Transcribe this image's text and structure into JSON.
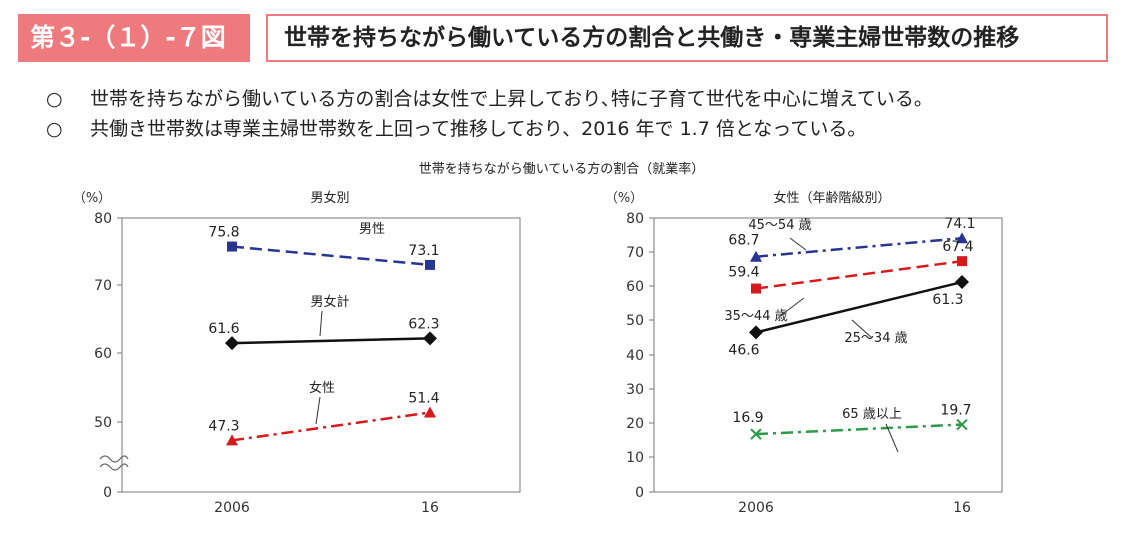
{
  "header": {
    "label": "第３-（１）-７図",
    "title": "世帯を持ちながら働いている方の割合と共働き・専業主婦世帯数の推移"
  },
  "bullets": [
    {
      "mark": "○",
      "text": "世帯を持ちながら働いている方の割合は女性で上昇しており､特に子育て世代を中心に増えている。"
    },
    {
      "mark": "○",
      "text": "共働き世帯数は専業主婦世帯数を上回って推移しており、2016 年で 1.7 倍となっている。"
    }
  ],
  "chart_heading": "世帯を持ちながら働いている方の割合（就業率）",
  "chart_data": [
    {
      "type": "line",
      "title": "男女別",
      "ylabel": "（%）",
      "categories": [
        "2006",
        "16"
      ],
      "ylim": [
        40,
        80
      ],
      "yticks": [
        "80",
        "70",
        "60",
        "50",
        "0"
      ],
      "axis_break": true,
      "series": [
        {
          "name": "男性",
          "values": [
            75.8,
            73.1
          ],
          "labels": [
            "75.8",
            "73.1"
          ],
          "color": "#283593",
          "dash": "dash",
          "marker": "square"
        },
        {
          "name": "男女計",
          "values": [
            61.6,
            62.3
          ],
          "labels": [
            "61.6",
            "62.3"
          ],
          "color": "#111111",
          "dash": "solid",
          "marker": "diamond"
        },
        {
          "name": "女性",
          "values": [
            47.3,
            51.4
          ],
          "labels": [
            "47.3",
            "51.4"
          ],
          "color": "#d8191c",
          "dash": "dashdot",
          "marker": "triangle"
        }
      ]
    },
    {
      "type": "line",
      "title": "女性（年齢階級別）",
      "ylabel": "（%）",
      "categories": [
        "2006",
        "16"
      ],
      "ylim": [
        0,
        80
      ],
      "yticks": [
        "80",
        "70",
        "60",
        "50",
        "40",
        "30",
        "20",
        "10",
        "0"
      ],
      "series": [
        {
          "name": "45～54 歳",
          "values": [
            68.7,
            74.1
          ],
          "labels": [
            "68.7",
            "74.1"
          ],
          "color": "#283593",
          "dash": "dashdot",
          "marker": "triangle"
        },
        {
          "name": "35～44 歳",
          "values": [
            59.4,
            67.4
          ],
          "labels": [
            "59.4",
            "67.4"
          ],
          "color": "#d8191c",
          "dash": "dash",
          "marker": "square"
        },
        {
          "name": "25～34 歳",
          "values": [
            46.6,
            61.3
          ],
          "labels": [
            "46.6",
            "61.3"
          ],
          "color": "#111111",
          "dash": "solid",
          "marker": "diamond"
        },
        {
          "name": "65 歳以上",
          "values": [
            16.9,
            19.7
          ],
          "labels": [
            "16.9",
            "19.7"
          ],
          "color": "#2e9a48",
          "dash": "dashdot",
          "marker": "cross"
        }
      ]
    }
  ]
}
